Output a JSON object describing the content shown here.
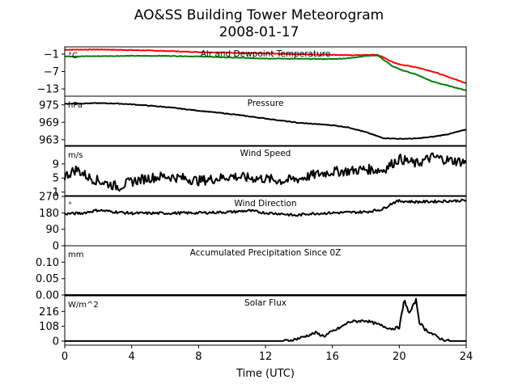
{
  "figure": {
    "title_line1": "AO&SS Building Tower Meteorogram",
    "title_line2": "2008-01-17",
    "xlabel": "Time (UTC)"
  },
  "chart_data": {
    "type": "line",
    "x_range": [
      0,
      24
    ],
    "x_ticks": [
      0,
      4,
      8,
      12,
      16,
      20,
      24
    ],
    "panels": [
      {
        "id": "temperature",
        "title": "Air and Dewpoint Temperature",
        "unit": "°C",
        "ylim": [
          -15.5,
          1.5
        ],
        "yticks": [
          -1,
          -7,
          -13
        ],
        "ytick_labels": [
          "−1",
          "−7",
          "−13"
        ],
        "series": [
          {
            "color": "#ff0000",
            "x": [
              0,
              2,
              4,
              6,
              8,
              10,
              12,
              14,
              16,
              17,
              18,
              18.7,
              19.2,
              19.6,
              20,
              21,
              22,
              23,
              24
            ],
            "y": [
              0.5,
              0.6,
              0.4,
              0.1,
              -0.3,
              -0.5,
              -0.8,
              -1.0,
              -1.2,
              -1.4,
              -1.3,
              -1.2,
              -2.5,
              -3.8,
              -4.5,
              -5.5,
              -7.0,
              -9.0,
              -11.0
            ]
          },
          {
            "color": "#008000",
            "x": [
              0,
              2,
              4,
              6,
              8,
              10,
              12,
              14,
              16,
              17,
              18,
              18.7,
              19.2,
              19.6,
              20,
              21,
              22,
              23,
              24
            ],
            "y": [
              -1.8,
              -1.7,
              -1.6,
              -1.6,
              -1.8,
              -2.2,
              -2.5,
              -2.6,
              -2.7,
              -2.4,
              -1.6,
              -1.4,
              -3.5,
              -5.2,
              -6.2,
              -8.0,
              -10.5,
              -12.0,
              -13.5
            ]
          }
        ]
      },
      {
        "id": "pressure",
        "title": "Pressure",
        "unit": "hPa",
        "ylim": [
          961,
          978
        ],
        "yticks": [
          975,
          969,
          963
        ],
        "ytick_labels": [
          "975",
          "969",
          "963"
        ],
        "series": [
          {
            "color": "#000000",
            "x": [
              0,
              1,
              2,
              3,
              4,
              6,
              8,
              10,
              12,
              14,
              16,
              17,
              18,
              19,
              20,
              21,
              22,
              23,
              24
            ],
            "y": [
              975.4,
              975.5,
              975.6,
              975.5,
              975.2,
              974.3,
              973.0,
              971.8,
              970.3,
              968.8,
              968.0,
              967.2,
              965.6,
              963.6,
              963.3,
              963.4,
              964.0,
              965.0,
              966.5
            ]
          }
        ]
      },
      {
        "id": "wind_speed",
        "title": "Wind Speed",
        "unit": "m/s",
        "ylim": [
          0,
          14
        ],
        "yticks": [
          1,
          5,
          9
        ],
        "ytick_labels": [
          "1",
          "5",
          "9"
        ],
        "series": [
          {
            "color": "#000000",
            "x": [
              0,
              0.7,
              1.5,
              2.5,
              3.2,
              4,
              5,
              6,
              7,
              8,
              9,
              10,
              11,
              12,
              13,
              14,
              15,
              16,
              17,
              18,
              19,
              20,
              21,
              22,
              23,
              24
            ],
            "y": [
              5.5,
              7.5,
              5.0,
              3.5,
              2.5,
              4.0,
              5.0,
              5.5,
              5.0,
              4.2,
              4.8,
              5.5,
              5.0,
              4.8,
              4.2,
              4.8,
              6.0,
              6.8,
              7.0,
              7.5,
              7.2,
              10.5,
              9.0,
              11.0,
              10.0,
              9.5
            ]
          }
        ]
      },
      {
        "id": "wind_direction",
        "title": "Wind Direction",
        "unit": "°",
        "ylim": [
          0,
          270
        ],
        "yticks": [
          0,
          90,
          180,
          270
        ],
        "ytick_labels": [
          "0",
          "90",
          "180",
          "270"
        ],
        "series": [
          {
            "color": "#000000",
            "x": [
              0,
              1,
              2,
              3,
              4,
              6,
              8,
              10,
              11,
              12,
              13,
              13.8,
              14.5,
              16,
              18,
              19,
              19.6,
              20,
              21,
              22,
              23,
              24
            ],
            "y": [
              175,
              178,
              195,
              185,
              178,
              178,
              180,
              185,
              192,
              180,
              175,
              165,
              175,
              180,
              185,
              200,
              235,
              245,
              240,
              242,
              245,
              248
            ]
          }
        ]
      },
      {
        "id": "precipitation",
        "title": "Accumulated Precipitation Since 0Z",
        "unit": "mm",
        "ylim": [
          0,
          0.15
        ],
        "yticks": [
          0,
          0.05,
          0.1
        ],
        "ytick_labels": [
          "0.00",
          "0.05",
          "0.10"
        ],
        "series": [
          {
            "color": "#000000",
            "x": [
              0,
              24
            ],
            "y": [
              0,
              0
            ]
          }
        ]
      },
      {
        "id": "solar_flux",
        "title": "Solar Flux",
        "unit": "W/m^2",
        "ylim": [
          -30,
          330
        ],
        "yticks": [
          0,
          108,
          216
        ],
        "ytick_labels": [
          "0",
          "108",
          "216"
        ],
        "series": [
          {
            "color": "#000000",
            "x": [
              0,
              13,
              13.5,
              14,
              14.5,
              15,
              15.5,
              16,
              16.5,
              17,
              17.5,
              18,
              18.5,
              19,
              19.5,
              20,
              20.3,
              20.6,
              21,
              21.2,
              21.5,
              22,
              22.5,
              23,
              24
            ],
            "y": [
              0,
              0,
              5,
              20,
              40,
              60,
              35,
              70,
              100,
              140,
              145,
              150,
              130,
              110,
              90,
              100,
              300,
              200,
              300,
              140,
              90,
              50,
              15,
              0,
              0
            ]
          }
        ]
      }
    ]
  }
}
